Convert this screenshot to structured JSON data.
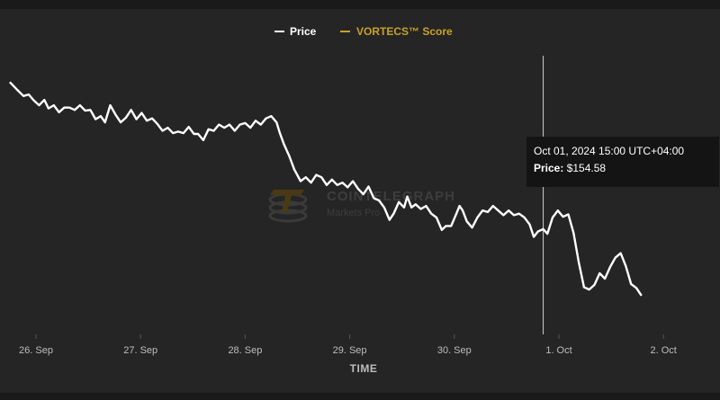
{
  "chart_data": {
    "type": "line",
    "legend": {
      "placement": "top-center",
      "items": [
        {
          "name": "Price",
          "color": "#ffffff",
          "label": "Price"
        },
        {
          "name": "VORTECS™ Score",
          "color": "#c9a227",
          "label": "VORTECS™ Score"
        }
      ]
    },
    "xlabel": "TIME",
    "x_ticks": [
      "26. Sep",
      "27. Sep",
      "28. Sep",
      "29. Sep",
      "30. Sep",
      "1. Oct",
      "2. Oct"
    ],
    "x_range_days": [
      -0.25,
      6.5
    ],
    "y_range": [
      142,
      178
    ],
    "grid": false,
    "series": [
      {
        "name": "Price",
        "color": "#ffffff",
        "points": [
          [
            -0.25,
            174.6
          ],
          [
            -0.18,
            173.6
          ],
          [
            -0.12,
            172.8
          ],
          [
            -0.07,
            173.0
          ],
          [
            -0.02,
            172.2
          ],
          [
            0.03,
            171.6
          ],
          [
            0.08,
            172.3
          ],
          [
            0.12,
            171.2
          ],
          [
            0.17,
            171.6
          ],
          [
            0.22,
            170.7
          ],
          [
            0.27,
            171.3
          ],
          [
            0.32,
            171.3
          ],
          [
            0.37,
            171.0
          ],
          [
            0.42,
            171.6
          ],
          [
            0.47,
            170.9
          ],
          [
            0.52,
            171.0
          ],
          [
            0.57,
            169.8
          ],
          [
            0.62,
            170.2
          ],
          [
            0.66,
            169.4
          ],
          [
            0.71,
            171.6
          ],
          [
            0.76,
            170.4
          ],
          [
            0.81,
            169.4
          ],
          [
            0.86,
            170.0
          ],
          [
            0.91,
            171.0
          ],
          [
            0.96,
            169.8
          ],
          [
            1.01,
            170.6
          ],
          [
            1.06,
            169.6
          ],
          [
            1.11,
            169.9
          ],
          [
            1.16,
            169.2
          ],
          [
            1.21,
            168.3
          ],
          [
            1.26,
            168.7
          ],
          [
            1.31,
            168.0
          ],
          [
            1.36,
            168.2
          ],
          [
            1.41,
            168.0
          ],
          [
            1.46,
            168.8
          ],
          [
            1.51,
            167.9
          ],
          [
            1.55,
            167.9
          ],
          [
            1.6,
            167.1
          ],
          [
            1.65,
            168.5
          ],
          [
            1.7,
            168.3
          ],
          [
            1.75,
            169.1
          ],
          [
            1.8,
            168.7
          ],
          [
            1.85,
            169.1
          ],
          [
            1.9,
            168.3
          ],
          [
            1.95,
            169.1
          ],
          [
            2.0,
            169.3
          ],
          [
            2.05,
            168.7
          ],
          [
            2.1,
            169.6
          ],
          [
            2.15,
            169.1
          ],
          [
            2.2,
            169.9
          ],
          [
            2.25,
            170.2
          ],
          [
            2.3,
            169.4
          ],
          [
            2.33,
            168.1
          ],
          [
            2.37,
            166.6
          ],
          [
            2.42,
            165.1
          ],
          [
            2.47,
            163.3
          ],
          [
            2.53,
            161.8
          ],
          [
            2.58,
            162.3
          ],
          [
            2.63,
            161.6
          ],
          [
            2.68,
            162.6
          ],
          [
            2.73,
            162.3
          ],
          [
            2.78,
            161.3
          ],
          [
            2.83,
            162.0
          ],
          [
            2.88,
            161.3
          ],
          [
            2.93,
            161.6
          ],
          [
            2.98,
            161.0
          ],
          [
            3.03,
            161.8
          ],
          [
            3.08,
            160.8
          ],
          [
            3.13,
            160.1
          ],
          [
            3.18,
            161.1
          ],
          [
            3.23,
            159.6
          ],
          [
            3.28,
            159.3
          ],
          [
            3.33,
            158.4
          ],
          [
            3.38,
            156.8
          ],
          [
            3.42,
            157.6
          ],
          [
            3.47,
            159.1
          ],
          [
            3.52,
            158.4
          ],
          [
            3.55,
            159.8
          ],
          [
            3.59,
            158.4
          ],
          [
            3.63,
            158.8
          ],
          [
            3.68,
            158.2
          ],
          [
            3.73,
            158.6
          ],
          [
            3.78,
            157.6
          ],
          [
            3.83,
            157.1
          ],
          [
            3.88,
            155.5
          ],
          [
            3.92,
            156.0
          ],
          [
            3.97,
            156.0
          ],
          [
            4.02,
            157.6
          ],
          [
            4.05,
            158.6
          ],
          [
            4.08,
            158.0
          ],
          [
            4.12,
            156.6
          ],
          [
            4.17,
            155.8
          ],
          [
            4.22,
            157.1
          ],
          [
            4.27,
            158.0
          ],
          [
            4.32,
            157.8
          ],
          [
            4.37,
            158.6
          ],
          [
            4.42,
            158.0
          ],
          [
            4.47,
            157.4
          ],
          [
            4.52,
            158.0
          ],
          [
            4.57,
            157.4
          ],
          [
            4.62,
            157.6
          ],
          [
            4.67,
            157.1
          ],
          [
            4.72,
            156.2
          ],
          [
            4.76,
            154.6
          ],
          [
            4.8,
            155.3
          ],
          [
            4.85,
            155.6
          ],
          [
            4.89,
            155.0
          ],
          [
            4.94,
            157.1
          ],
          [
            4.99,
            158.0
          ],
          [
            5.04,
            157.2
          ],
          [
            5.09,
            157.5
          ],
          [
            5.14,
            155.1
          ],
          [
            5.19,
            151.3
          ],
          [
            5.24,
            148.1
          ],
          [
            5.29,
            147.8
          ],
          [
            5.34,
            148.4
          ],
          [
            5.39,
            149.9
          ],
          [
            5.44,
            149.2
          ],
          [
            5.49,
            150.7
          ],
          [
            5.54,
            151.9
          ],
          [
            5.59,
            152.5
          ],
          [
            5.64,
            150.8
          ],
          [
            5.69,
            148.5
          ],
          [
            5.74,
            148.0
          ],
          [
            5.79,
            147.0
          ]
        ]
      }
    ],
    "tooltip": {
      "time": "Oct 01, 2024 15:00 UTC+04:00",
      "price_label": "Price:",
      "price_value": "$154.58",
      "x_day": 4.85
    },
    "watermark": {
      "brand": "COINTELEGRAPH",
      "sub": "Markets Pro"
    }
  }
}
